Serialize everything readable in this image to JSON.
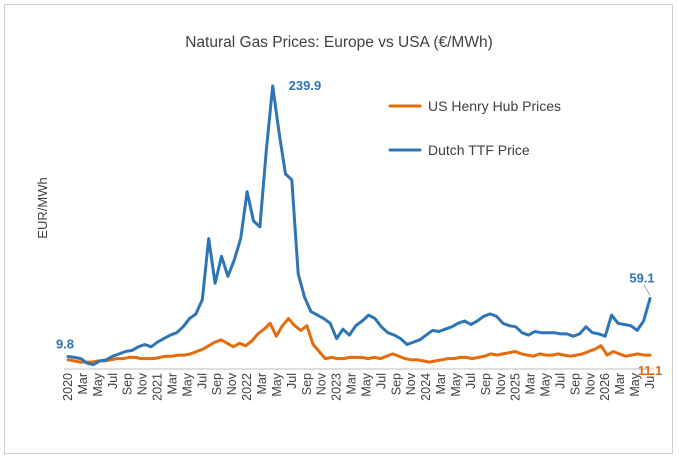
{
  "chart_data": {
    "type": "line",
    "title": "Natural Gas Prices: Europe vs USA (€/MWh)",
    "xlabel": "",
    "ylabel": "EUR/MWh",
    "grid": false,
    "legend_position": "top-right",
    "ylim": [
      0,
      250
    ],
    "x_tick_labels": [
      "2020",
      "Mar",
      "May",
      "Jul",
      "Sep",
      "Nov",
      "2021",
      "Mar",
      "May",
      "Jul",
      "Sep",
      "Nov",
      "2022",
      "Mar",
      "May",
      "Jul",
      "Sep",
      "Nov",
      "2023",
      "Mar",
      "May",
      "Jul",
      "Sep",
      "Nov",
      "2024",
      "Mar",
      "May",
      "Jul",
      "Sep",
      "Nov",
      "2025",
      "Mar",
      "May",
      "Jul",
      "Sep",
      "Nov",
      "2026",
      "Mar",
      "May",
      "Jul"
    ],
    "series": [
      {
        "name": "US Henry Hub Prices",
        "color": "#E46C0A",
        "values": [
          7,
          6,
          5,
          5,
          5,
          6,
          6,
          7,
          8,
          8,
          9,
          9,
          8,
          8,
          8,
          9,
          10,
          10,
          11,
          11,
          12,
          14,
          16,
          19,
          22,
          24,
          21,
          18,
          21,
          19,
          23,
          29,
          33,
          38,
          27,
          36,
          42,
          36,
          32,
          36,
          20,
          14,
          8,
          9,
          8,
          8,
          9,
          9,
          9,
          8,
          9,
          8,
          10,
          12,
          10,
          8,
          7,
          7,
          6,
          5,
          6,
          7,
          8,
          8,
          9,
          9,
          8,
          9,
          10,
          12,
          11,
          12,
          13,
          14,
          12,
          11,
          10,
          12,
          11,
          11,
          12,
          11,
          10,
          11,
          12,
          14,
          16,
          19,
          11,
          14,
          12,
          10,
          11,
          12,
          11,
          11
        ],
        "annotations": [
          {
            "label": "11.1",
            "x_index": 95,
            "value": 11.1
          }
        ]
      },
      {
        "name": "Dutch TTF Price",
        "color": "#2E75B6",
        "values": [
          9.8,
          9,
          8,
          4,
          3,
          6,
          7,
          10,
          12,
          14,
          15,
          18,
          20,
          18,
          22,
          25,
          28,
          30,
          35,
          42,
          46,
          58,
          110,
          72,
          95,
          78,
          92,
          110,
          150,
          125,
          120,
          185,
          239.9,
          200,
          165,
          160,
          80,
          60,
          48,
          45,
          42,
          38,
          25,
          33,
          28,
          36,
          40,
          45,
          42,
          35,
          30,
          28,
          25,
          20,
          22,
          24,
          28,
          32,
          31,
          33,
          35,
          38,
          40,
          37,
          40,
          44,
          46,
          44,
          38,
          36,
          35,
          30,
          28,
          31,
          30,
          30,
          30,
          29,
          29,
          27,
          29,
          35,
          30,
          29,
          27,
          45,
          38,
          37,
          36,
          32,
          40,
          59.1
        ],
        "annotations": [
          {
            "label": "9.8",
            "x_index": 0,
            "value": 9.8
          },
          {
            "label": "239.9",
            "x_index": 32,
            "value": 239.9
          },
          {
            "label": "59.1",
            "x_index": 91,
            "value": 59.1
          }
        ]
      }
    ]
  }
}
